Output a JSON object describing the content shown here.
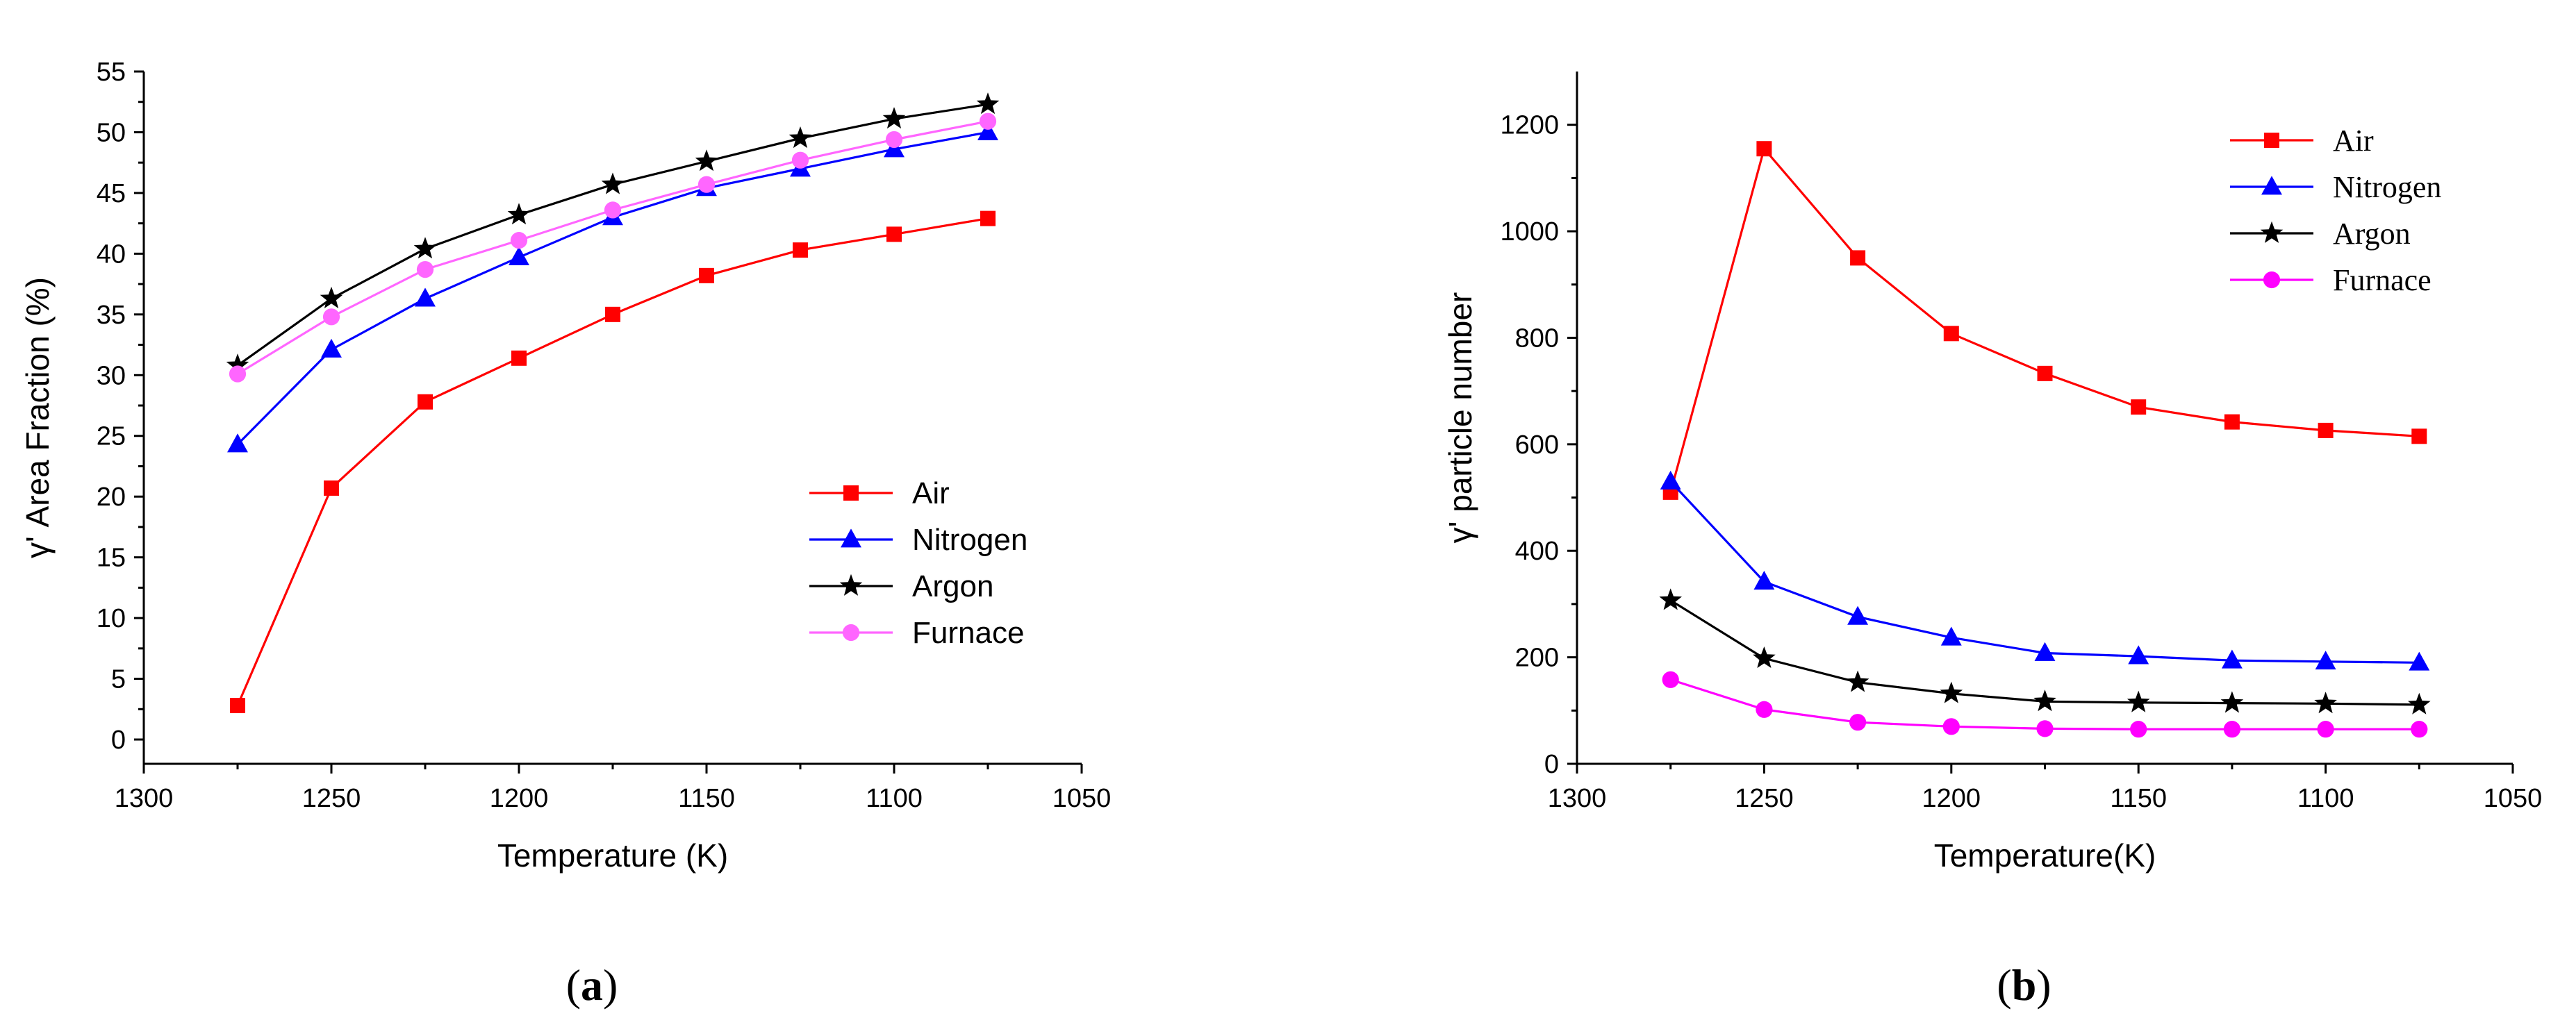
{
  "chart_data": [
    {
      "panel": "(a)",
      "panel_letter": "a",
      "type": "line",
      "xlabel": "Temperature (K)",
      "ylabel": "γ' Area Fraction (%)",
      "xlim": [
        1300,
        1050
      ],
      "ylim": [
        -2,
        55
      ],
      "xticks": [
        1300,
        1250,
        1200,
        1150,
        1100,
        1050
      ],
      "yticks": [
        0,
        5,
        10,
        15,
        20,
        25,
        30,
        35,
        40,
        45,
        50,
        55
      ],
      "x": [
        1275,
        1250,
        1225,
        1200,
        1175,
        1150,
        1125,
        1100,
        1075
      ],
      "legend_position": "center-right",
      "legend_font": "sans",
      "series": [
        {
          "name": "Air",
          "color": "#ff0000",
          "marker": "square",
          "values": [
            2.8,
            20.7,
            27.8,
            31.4,
            35.0,
            38.2,
            40.3,
            41.6,
            42.9
          ]
        },
        {
          "name": "Nitrogen",
          "color": "#0000ff",
          "marker": "triangle",
          "values": [
            24.3,
            32.1,
            36.3,
            39.7,
            43.0,
            45.4,
            47.0,
            48.6,
            50.0
          ]
        },
        {
          "name": "Argon",
          "color": "#000000",
          "marker": "star",
          "values": [
            30.8,
            36.3,
            40.4,
            43.2,
            45.7,
            47.6,
            49.5,
            51.1,
            52.3
          ]
        },
        {
          "name": "Furnace",
          "color": "#ff66ff",
          "marker": "circle",
          "values": [
            30.1,
            34.8,
            38.7,
            41.1,
            43.6,
            45.7,
            47.7,
            49.4,
            50.9
          ]
        }
      ]
    },
    {
      "panel": "(b)",
      "panel_letter": "b",
      "type": "line",
      "xlabel": "Temperature(K)",
      "ylabel": "γ' particle number",
      "xlim": [
        1300,
        1050
      ],
      "ylim": [
        0,
        1300
      ],
      "xticks": [
        1300,
        1250,
        1200,
        1150,
        1100,
        1050
      ],
      "yticks": [
        0,
        200,
        400,
        600,
        800,
        1000,
        1200
      ],
      "x": [
        1275,
        1250,
        1225,
        1200,
        1175,
        1150,
        1125,
        1100,
        1075
      ],
      "legend_position": "top-right",
      "legend_font": "serif",
      "series": [
        {
          "name": "Air",
          "color": "#ff0000",
          "marker": "square",
          "values": [
            510,
            1155,
            950,
            808,
            733,
            670,
            642,
            626,
            615
          ]
        },
        {
          "name": "Nitrogen",
          "color": "#0000ff",
          "marker": "triangle",
          "values": [
            530,
            342,
            276,
            237,
            208,
            202,
            194,
            192,
            190
          ]
        },
        {
          "name": "Argon",
          "color": "#000000",
          "marker": "star",
          "values": [
            307,
            198,
            153,
            132,
            117,
            115,
            114,
            113,
            111
          ]
        },
        {
          "name": "Furnace",
          "color": "#ff00ff",
          "marker": "circle",
          "values": [
            158,
            102,
            78,
            70,
            66,
            65,
            65,
            65,
            65
          ]
        }
      ]
    }
  ]
}
